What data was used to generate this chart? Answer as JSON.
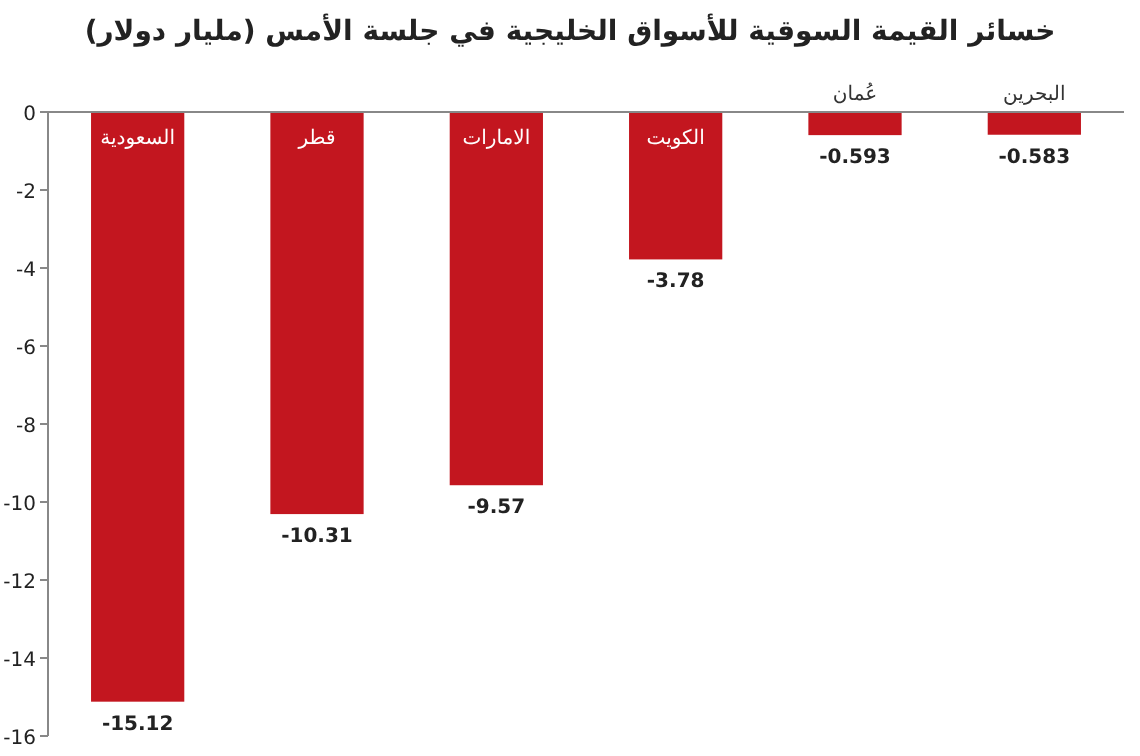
{
  "chart_data": {
    "type": "bar",
    "title": "خسائر القيمة السوقية للأسواق الخليجية في جلسة الأمس (مليار دولار)",
    "categories": [
      "السعودية",
      "قطر",
      "الامارات",
      "الكويت",
      "عُمان",
      "البحرين"
    ],
    "values": [
      -15.12,
      -10.31,
      -9.57,
      -3.78,
      -0.593,
      -0.583
    ],
    "color": "#c3161f",
    "ylim": [
      -16,
      0
    ],
    "yticks": [
      0,
      -2,
      -4,
      -6,
      -8,
      -10,
      -12,
      -14,
      -16
    ],
    "data_labels": true,
    "grid": false
  }
}
